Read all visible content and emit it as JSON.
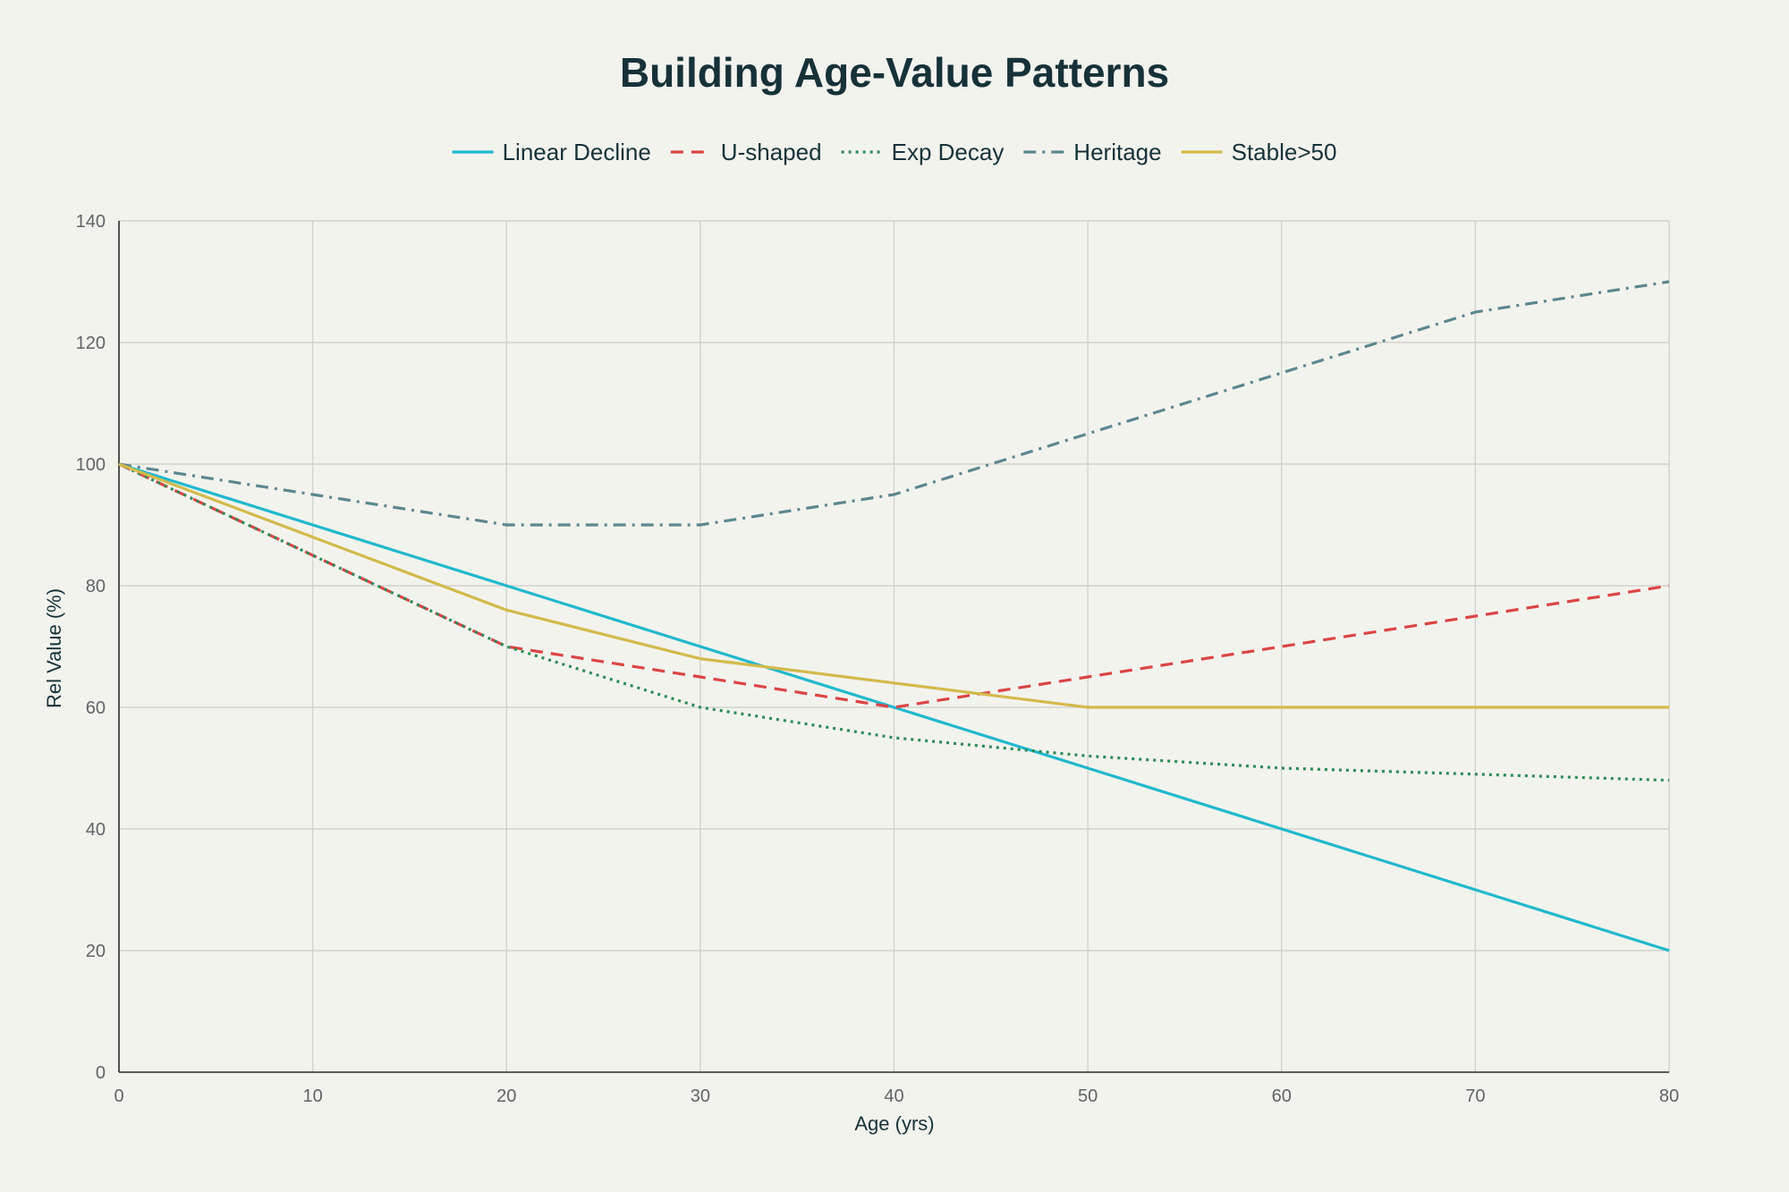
{
  "chart_data": {
    "type": "line",
    "title": "Building Age-Value Patterns",
    "xlabel": "Age (yrs)",
    "ylabel": "Rel Value (%)",
    "xlim": [
      0,
      80
    ],
    "ylim": [
      0,
      140
    ],
    "x_ticks": [
      0,
      10,
      20,
      30,
      40,
      50,
      60,
      70,
      80
    ],
    "y_ticks": [
      0,
      20,
      40,
      60,
      80,
      100,
      120,
      140
    ],
    "grid": true,
    "legend_position": "top-center",
    "x": [
      0,
      10,
      20,
      30,
      40,
      50,
      60,
      70,
      80
    ],
    "series": [
      {
        "name": "Linear Decline",
        "values": [
          100,
          90,
          80,
          70,
          60,
          50,
          40,
          30,
          20
        ],
        "color": "#1fb8cd",
        "dash": "solid"
      },
      {
        "name": "U-shaped",
        "values": [
          100,
          85,
          70,
          65,
          60,
          65,
          70,
          75,
          80
        ],
        "color": "#db4545",
        "dash": "dash"
      },
      {
        "name": "Exp Decay",
        "values": [
          100,
          85,
          70,
          60,
          55,
          52,
          50,
          49,
          48
        ],
        "color": "#2e8b57",
        "dash": "dot"
      },
      {
        "name": "Heritage",
        "values": [
          100,
          95,
          90,
          90,
          95,
          105,
          115,
          125,
          130
        ],
        "color": "#5d878f",
        "dash": "dashdot"
      },
      {
        "name": "Stable>50",
        "values": [
          100,
          88,
          76,
          68,
          64,
          60,
          60,
          60,
          60
        ],
        "color": "#d2ba4c",
        "dash": "solid"
      }
    ]
  }
}
